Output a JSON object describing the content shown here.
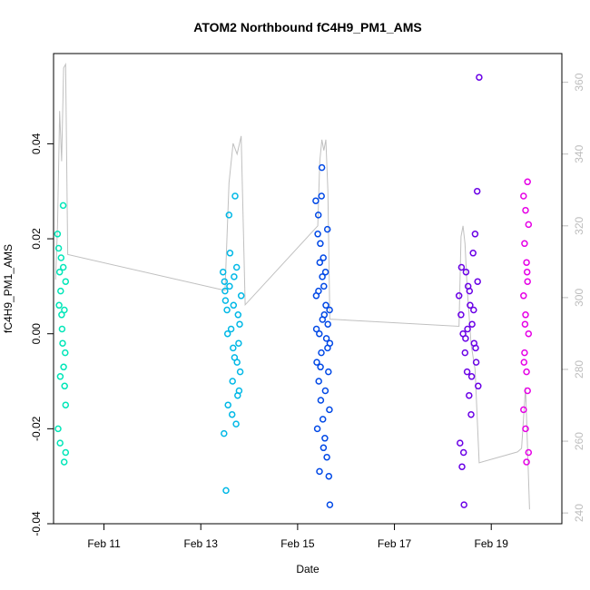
{
  "chart_data": {
    "type": "scatter",
    "title": "ATOM2 Northbound fC4H9_PM1_AMS",
    "xlabel": "Date",
    "ylabel": "fC4H9_PM1_AMS",
    "xlim": [
      "2016-02-09T23:00",
      "2016-02-20T11:00"
    ],
    "ylim": [
      -0.04,
      0.059
    ],
    "y2lim": [
      237,
      368
    ],
    "x_ticks": [
      {
        "t": "2016-02-11T00:00",
        "label": "Feb 11"
      },
      {
        "t": "2016-02-13T00:00",
        "label": "Feb 13"
      },
      {
        "t": "2016-02-15T00:00",
        "label": "Feb 15"
      },
      {
        "t": "2016-02-17T00:00",
        "label": "Feb 17"
      },
      {
        "t": "2016-02-19T00:00",
        "label": "Feb 19"
      }
    ],
    "y_ticks": [
      {
        "v": -0.04,
        "label": "-0.04"
      },
      {
        "v": -0.02,
        "label": "-0.02"
      },
      {
        "v": 0.0,
        "label": "0.00"
      },
      {
        "v": 0.02,
        "label": "0.02"
      },
      {
        "v": 0.04,
        "label": "0.04"
      }
    ],
    "y2_ticks": [
      {
        "v": 240,
        "label": "240"
      },
      {
        "v": 260,
        "label": "260"
      },
      {
        "v": 280,
        "label": "280"
      },
      {
        "v": 300,
        "label": "300"
      },
      {
        "v": 320,
        "label": "320"
      },
      {
        "v": 340,
        "label": "340"
      },
      {
        "v": 360,
        "label": "360"
      }
    ],
    "grid": false,
    "legend": "none",
    "secondary_series_color": "#c0c0c0",
    "series": [
      {
        "color": "#00e6b8",
        "points": [
          [
            "2016-02-10T01:00",
            0.021
          ],
          [
            "2016-02-10T01:30",
            0.018
          ],
          [
            "2016-02-10T02:00",
            0.013
          ],
          [
            "2016-02-10T02:30",
            0.009
          ],
          [
            "2016-02-10T03:00",
            0.004
          ],
          [
            "2016-02-10T03:30",
            -0.002
          ],
          [
            "2016-02-10T04:00",
            -0.007
          ],
          [
            "2016-02-10T04:30",
            -0.011
          ],
          [
            "2016-02-10T05:00",
            -0.015
          ],
          [
            "2016-02-10T01:15",
            -0.02
          ],
          [
            "2016-02-10T02:15",
            -0.023
          ],
          [
            "2016-02-10T03:45",
            0.027
          ],
          [
            "2016-02-10T04:15",
            -0.027
          ],
          [
            "2016-02-10T02:45",
            0.016
          ],
          [
            "2016-02-10T01:45",
            0.006
          ],
          [
            "2016-02-10T03:15",
            0.001
          ],
          [
            "2016-02-10T04:45",
            -0.004
          ],
          [
            "2016-02-10T05:00",
            0.011
          ],
          [
            "2016-02-10T03:50",
            0.014
          ],
          [
            "2016-02-10T02:20",
            -0.009
          ],
          [
            "2016-02-10T04:20",
            0.005
          ],
          [
            "2016-02-10T05:00",
            -0.025
          ]
        ]
      },
      {
        "color": "#00b8e6",
        "points": [
          [
            "2016-02-13T11:00",
            0.013
          ],
          [
            "2016-02-13T12:00",
            0.009
          ],
          [
            "2016-02-13T13:00",
            0.005
          ],
          [
            "2016-02-13T14:00",
            0.025
          ],
          [
            "2016-02-13T15:00",
            0.001
          ],
          [
            "2016-02-13T16:00",
            -0.003
          ],
          [
            "2016-02-13T17:00",
            0.029
          ],
          [
            "2016-02-13T18:00",
            -0.006
          ],
          [
            "2016-02-13T19:00",
            -0.012
          ],
          [
            "2016-02-13T20:00",
            0.008
          ],
          [
            "2016-02-13T11:30",
            -0.021
          ],
          [
            "2016-02-13T12:30",
            -0.033
          ],
          [
            "2016-02-13T13:30",
            -0.015
          ],
          [
            "2016-02-13T14:30",
            0.017
          ],
          [
            "2016-02-13T15:30",
            -0.017
          ],
          [
            "2016-02-13T16:30",
            0.012
          ],
          [
            "2016-02-13T17:30",
            -0.019
          ],
          [
            "2016-02-13T18:30",
            0.004
          ],
          [
            "2016-02-13T19:30",
            -0.008
          ],
          [
            "2016-02-13T14:15",
            0.01
          ],
          [
            "2016-02-13T16:15",
            0.006
          ],
          [
            "2016-02-13T17:45",
            0.014
          ],
          [
            "2016-02-13T18:45",
            -0.002
          ],
          [
            "2016-02-13T19:15",
            0.002
          ],
          [
            "2016-02-13T15:45",
            -0.01
          ],
          [
            "2016-02-13T13:15",
            0.0
          ],
          [
            "2016-02-13T12:15",
            0.007
          ],
          [
            "2016-02-13T18:15",
            -0.013
          ],
          [
            "2016-02-13T11:45",
            0.011
          ],
          [
            "2016-02-13T16:45",
            -0.005
          ]
        ]
      },
      {
        "color": "#0048e6",
        "points": [
          [
            "2016-02-15T09:00",
            0.028
          ],
          [
            "2016-02-15T10:00",
            0.021
          ],
          [
            "2016-02-15T11:00",
            0.015
          ],
          [
            "2016-02-15T12:00",
            0.035
          ],
          [
            "2016-02-15T13:00",
            0.01
          ],
          [
            "2016-02-15T14:00",
            0.006
          ],
          [
            "2016-02-15T15:00",
            0.002
          ],
          [
            "2016-02-15T16:00",
            -0.002
          ],
          [
            "2016-02-15T09:30",
            -0.006
          ],
          [
            "2016-02-15T10:30",
            -0.01
          ],
          [
            "2016-02-15T11:30",
            -0.014
          ],
          [
            "2016-02-15T12:30",
            -0.018
          ],
          [
            "2016-02-15T13:30",
            -0.022
          ],
          [
            "2016-02-15T14:30",
            -0.026
          ],
          [
            "2016-02-15T15:30",
            -0.03
          ],
          [
            "2016-02-15T16:00",
            -0.036
          ],
          [
            "2016-02-15T10:15",
            0.025
          ],
          [
            "2016-02-15T11:15",
            0.019
          ],
          [
            "2016-02-15T12:15",
            0.012
          ],
          [
            "2016-02-15T13:15",
            0.004
          ],
          [
            "2016-02-15T14:15",
            -0.001
          ],
          [
            "2016-02-15T15:15",
            -0.008
          ],
          [
            "2016-02-15T09:15",
            0.008
          ],
          [
            "2016-02-15T10:45",
            0.0
          ],
          [
            "2016-02-15T11:45",
            -0.004
          ],
          [
            "2016-02-15T12:45",
            0.016
          ],
          [
            "2016-02-15T13:45",
            -0.012
          ],
          [
            "2016-02-15T14:45",
            0.022
          ],
          [
            "2016-02-15T15:45",
            -0.016
          ],
          [
            "2016-02-15T09:45",
            -0.02
          ],
          [
            "2016-02-15T10:50",
            -0.029
          ],
          [
            "2016-02-15T11:50",
            0.029
          ],
          [
            "2016-02-15T12:50",
            -0.024
          ],
          [
            "2016-02-15T13:50",
            0.013
          ],
          [
            "2016-02-15T14:50",
            -0.003
          ],
          [
            "2016-02-15T15:50",
            0.005
          ],
          [
            "2016-02-15T09:20",
            0.001
          ],
          [
            "2016-02-15T10:20",
            0.009
          ],
          [
            "2016-02-15T11:20",
            -0.007
          ],
          [
            "2016-02-15T12:20",
            0.003
          ]
        ]
      },
      {
        "color": "#6a00e6",
        "points": [
          [
            "2016-02-18T08:00",
            0.008
          ],
          [
            "2016-02-18T09:00",
            0.004
          ],
          [
            "2016-02-18T10:00",
            0.0
          ],
          [
            "2016-02-18T11:00",
            -0.004
          ],
          [
            "2016-02-18T12:00",
            -0.008
          ],
          [
            "2016-02-18T13:00",
            -0.013
          ],
          [
            "2016-02-18T14:00",
            -0.017
          ],
          [
            "2016-02-18T15:00",
            0.017
          ],
          [
            "2016-02-18T16:00",
            0.021
          ],
          [
            "2016-02-18T17:00",
            0.03
          ],
          [
            "2016-02-18T18:00",
            0.054
          ],
          [
            "2016-02-18T08:30",
            -0.023
          ],
          [
            "2016-02-18T09:30",
            -0.028
          ],
          [
            "2016-02-18T10:30",
            -0.036
          ],
          [
            "2016-02-18T11:30",
            0.013
          ],
          [
            "2016-02-18T12:30",
            0.01
          ],
          [
            "2016-02-18T13:30",
            0.006
          ],
          [
            "2016-02-18T14:30",
            0.002
          ],
          [
            "2016-02-18T15:30",
            -0.002
          ],
          [
            "2016-02-18T16:30",
            -0.006
          ],
          [
            "2016-02-18T17:30",
            -0.011
          ],
          [
            "2016-02-18T09:15",
            0.014
          ],
          [
            "2016-02-18T10:15",
            -0.025
          ],
          [
            "2016-02-18T12:15",
            0.001
          ],
          [
            "2016-02-18T13:15",
            0.009
          ],
          [
            "2016-02-18T14:15",
            -0.009
          ],
          [
            "2016-02-18T15:15",
            0.005
          ],
          [
            "2016-02-18T16:15",
            -0.003
          ],
          [
            "2016-02-18T17:15",
            0.011
          ],
          [
            "2016-02-18T11:15",
            -0.001
          ]
        ]
      },
      {
        "color": "#e600e6",
        "points": [
          [
            "2016-02-19T18:00",
            0.032
          ],
          [
            "2016-02-19T16:00",
            0.029
          ],
          [
            "2016-02-19T17:00",
            0.026
          ],
          [
            "2016-02-19T18:30",
            0.023
          ],
          [
            "2016-02-19T16:30",
            0.019
          ],
          [
            "2016-02-19T17:30",
            0.015
          ],
          [
            "2016-02-19T18:00",
            0.011
          ],
          [
            "2016-02-19T16:00",
            0.008
          ],
          [
            "2016-02-19T17:00",
            0.004
          ],
          [
            "2016-02-19T18:30",
            0.0
          ],
          [
            "2016-02-19T16:30",
            -0.004
          ],
          [
            "2016-02-19T17:30",
            -0.008
          ],
          [
            "2016-02-19T18:00",
            -0.012
          ],
          [
            "2016-02-19T16:00",
            -0.016
          ],
          [
            "2016-02-19T17:00",
            -0.02
          ],
          [
            "2016-02-19T18:30",
            -0.025
          ],
          [
            "2016-02-19T17:30",
            -0.027
          ],
          [
            "2016-02-19T16:45",
            0.002
          ],
          [
            "2016-02-19T17:45",
            0.013
          ],
          [
            "2016-02-19T16:15",
            -0.006
          ]
        ]
      }
    ],
    "secondary_series": {
      "name": "",
      "points": [
        [
          "2016-02-10T00:00",
          305
        ],
        [
          "2016-02-10T01:00",
          320
        ],
        [
          "2016-02-10T02:00",
          352
        ],
        [
          "2016-02-10T03:00",
          338
        ],
        [
          "2016-02-10T04:00",
          364
        ],
        [
          "2016-02-10T05:00",
          365
        ],
        [
          "2016-02-10T06:00",
          312
        ],
        [
          "2016-02-13T12:00",
          302
        ],
        [
          "2016-02-13T14:00",
          332
        ],
        [
          "2016-02-13T16:00",
          343
        ],
        [
          "2016-02-13T18:00",
          340
        ],
        [
          "2016-02-13T20:00",
          345
        ],
        [
          "2016-02-13T22:00",
          298
        ],
        [
          "2016-02-15T10:00",
          320
        ],
        [
          "2016-02-15T11:00",
          338
        ],
        [
          "2016-02-15T12:00",
          344
        ],
        [
          "2016-02-15T13:00",
          341
        ],
        [
          "2016-02-15T14:00",
          344
        ],
        [
          "2016-02-15T15:00",
          330
        ],
        [
          "2016-02-15T16:00",
          294
        ],
        [
          "2016-02-18T08:00",
          292
        ],
        [
          "2016-02-18T09:00",
          317
        ],
        [
          "2016-02-18T10:00",
          320
        ],
        [
          "2016-02-18T11:00",
          315
        ],
        [
          "2016-02-18T12:00",
          303
        ],
        [
          "2016-02-18T14:00",
          287
        ],
        [
          "2016-02-18T16:00",
          280
        ],
        [
          "2016-02-18T18:00",
          254
        ],
        [
          "2016-02-19T13:00",
          257
        ],
        [
          "2016-02-19T15:00",
          258
        ],
        [
          "2016-02-19T17:00",
          275
        ],
        [
          "2016-02-19T19:00",
          241
        ]
      ]
    }
  }
}
